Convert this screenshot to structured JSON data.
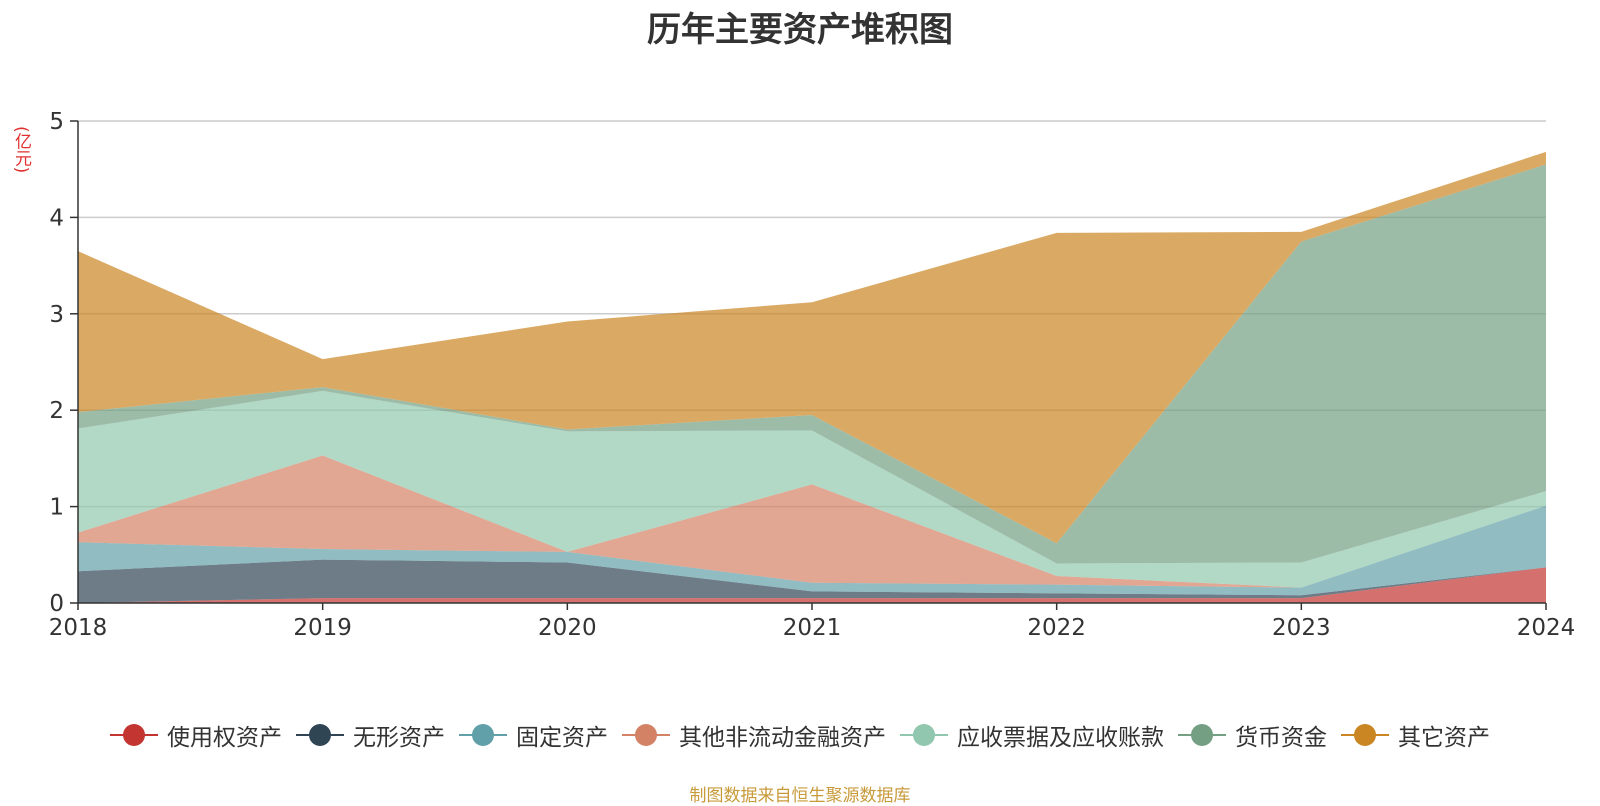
{
  "chart_data": {
    "type": "area",
    "stacked": true,
    "title": "历年主要资产堆积图",
    "ylabel": "(亿元)",
    "xlabel": "",
    "x": [
      "2018",
      "2019",
      "2020",
      "2021",
      "2022",
      "2023",
      "2024"
    ],
    "ylim": [
      0,
      5
    ],
    "yticks": [
      0,
      1,
      2,
      3,
      4,
      5
    ],
    "grid": true,
    "legend_position": "bottom",
    "series": [
      {
        "name": "使用权资产",
        "color": "#c23531",
        "values": [
          0.0,
          0.05,
          0.05,
          0.05,
          0.05,
          0.05,
          0.37
        ]
      },
      {
        "name": "无形资产",
        "color": "#2f4554",
        "values": [
          0.33,
          0.4,
          0.37,
          0.07,
          0.05,
          0.03,
          0.0
        ]
      },
      {
        "name": "固定资产",
        "color": "#61a0a8",
        "values": [
          0.3,
          0.11,
          0.11,
          0.09,
          0.09,
          0.08,
          0.64
        ]
      },
      {
        "name": "其他非流动金融资产",
        "color": "#d48265",
        "values": [
          0.1,
          0.97,
          0.0,
          1.02,
          0.09,
          0.0,
          0.0
        ]
      },
      {
        "name": "应收票据及应收账款",
        "color": "#91c7ae",
        "values": [
          1.08,
          0.67,
          1.25,
          0.56,
          0.13,
          0.26,
          0.15
        ]
      },
      {
        "name": "货币资金",
        "color": "#749f83",
        "values": [
          0.17,
          0.04,
          0.02,
          0.16,
          0.21,
          3.33,
          3.39
        ]
      },
      {
        "name": "其它资产",
        "color": "#ca8622",
        "values": [
          1.67,
          0.29,
          1.12,
          1.17,
          3.22,
          0.1,
          0.13
        ]
      }
    ]
  },
  "footer": {
    "source": "制图数据来自恒生聚源数据库"
  }
}
